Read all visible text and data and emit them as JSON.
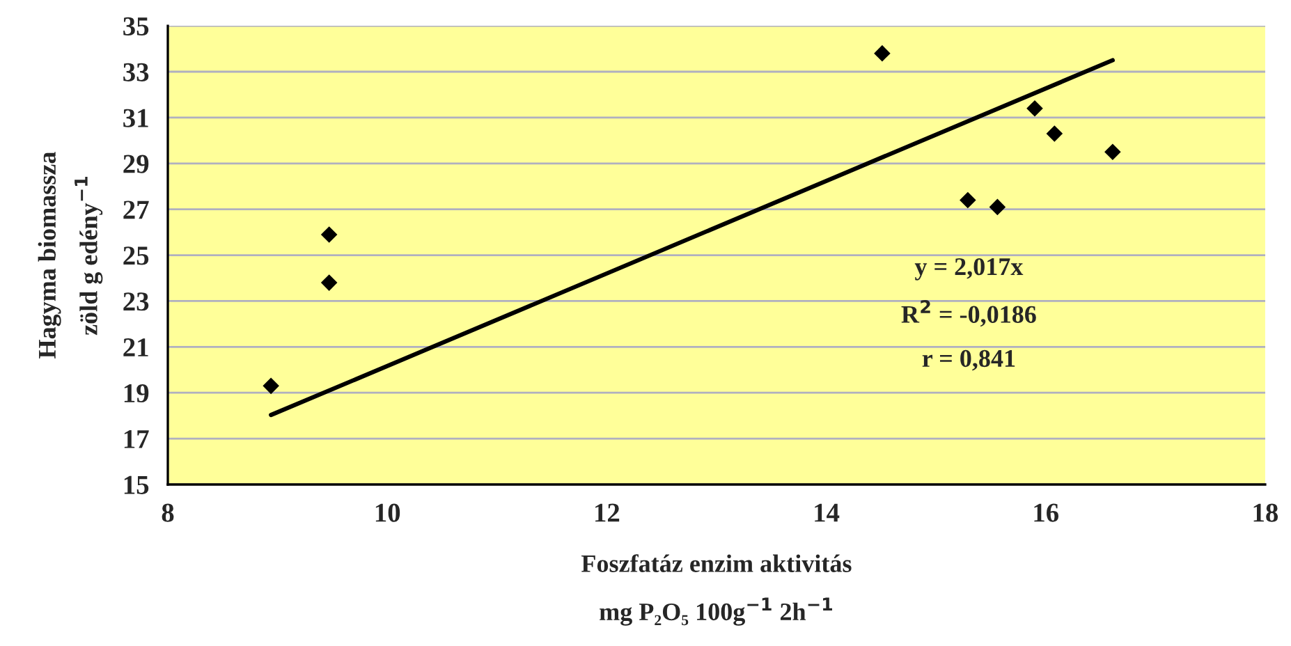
{
  "chart_data": {
    "type": "scatter",
    "xlabel": "Foszfatáz enzim aktivitás\nmg P₂O₅ 100g$^{−1}$ 2h$^{−1}$",
    "ylabel": "Hagyma biomassza\nzöld g edény$^{−1}$",
    "series": [
      {
        "color": "#000000",
        "marker": "diamond",
        "x": [
          8.94,
          9.47,
          9.47,
          14.51,
          15.29,
          15.56,
          15.9,
          16.08,
          16.61
        ],
        "values": [
          19.3,
          25.9,
          23.8,
          33.8,
          27.4,
          27.1,
          31.4,
          30.3,
          29.5
        ]
      },
      {
        "type": "line",
        "color": "#000000",
        "marker": "none",
        "line_style": "solid",
        "x": [
          8.94,
          16.61
        ],
        "values": [
          18.03,
          33.5
        ]
      }
    ],
    "annotations": [
      "y = 2,017x",
      "R$^{2}$ = -0,0186",
      "r = 0,841"
    ],
    "xlim": [
      8,
      18
    ],
    "xticks": [
      8,
      10,
      12,
      14,
      16,
      18
    ],
    "ylim": [
      15,
      35
    ],
    "yticks": [
      15,
      17,
      19,
      21,
      23,
      25,
      27,
      29,
      31,
      33,
      35
    ],
    "grid": "y",
    "legend": false
  }
}
